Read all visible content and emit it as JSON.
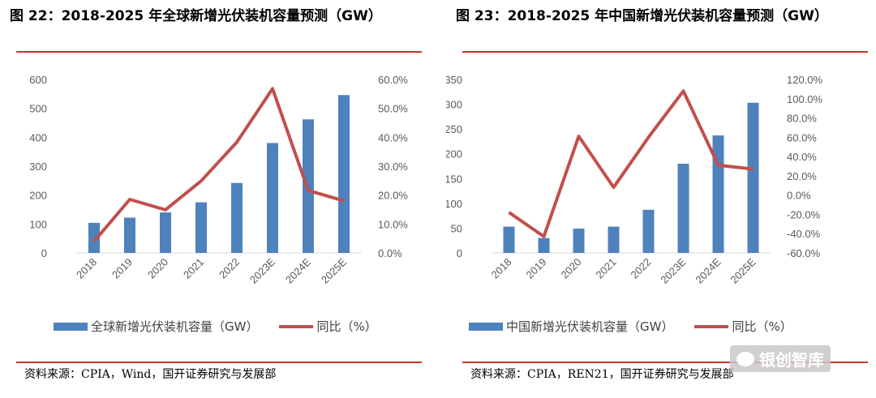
{
  "colors": {
    "bar": "#4f81bd",
    "line": "#c0504d",
    "rule": "#c0392b",
    "axis_text": "#595959"
  },
  "left": {
    "title": "图 22：2018-2025 年全球新增光伏装机容量预测（GW）",
    "legend_bar": "全球新增光伏装机容量（GW）",
    "legend_line": "同比（%）",
    "source": "资料来源：CPIA，Wind，国开证券研究与发展部"
  },
  "right": {
    "title": "图 23：2018-2025 年中国新增光伏装机容量预测（GW）",
    "legend_bar": "中国新增光伏装机容量（GW）",
    "legend_line": "同比（%）",
    "source": "资料来源：CPIA，REN21，国开证券研究与发展部"
  },
  "watermark": "银创智库",
  "chart_data": [
    {
      "type": "bar",
      "categories": [
        "2018",
        "2019",
        "2020",
        "2021",
        "2022",
        "2023E",
        "2024E",
        "2025E"
      ],
      "series": [
        {
          "name": "全球新增光伏装机容量（GW）",
          "type": "bar",
          "axis": "left",
          "values": [
            104,
            122,
            140,
            175,
            242,
            380,
            462,
            546
          ]
        },
        {
          "name": "同比（%）",
          "type": "line",
          "axis": "right",
          "values": [
            4.0,
            18.5,
            14.9,
            24.9,
            38.3,
            56.8,
            21.6,
            18.0
          ]
        }
      ],
      "ylim_left": [
        0,
        600
      ],
      "yticks_left": [
        "0",
        "100",
        "200",
        "300",
        "400",
        "500",
        "600"
      ],
      "ylim_right": [
        0,
        60
      ],
      "yticks_right": [
        "0.0%",
        "10.0%",
        "20.0%",
        "30.0%",
        "40.0%",
        "50.0%",
        "60.0%"
      ]
    },
    {
      "type": "bar",
      "categories": [
        "2018",
        "2019",
        "2020",
        "2021",
        "2022",
        "2023E",
        "2024E",
        "2025E"
      ],
      "series": [
        {
          "name": "中国新增光伏装机容量（GW）",
          "type": "bar",
          "axis": "left",
          "values": [
            53,
            30,
            49,
            53,
            87,
            180,
            237,
            303
          ]
        },
        {
          "name": "同比（%）",
          "type": "line",
          "axis": "right",
          "values": [
            -18,
            -43,
            61,
            8,
            60,
            108,
            31,
            27
          ]
        }
      ],
      "ylim_left": [
        0,
        350
      ],
      "yticks_left": [
        "0",
        "50",
        "100",
        "150",
        "200",
        "250",
        "300",
        "350"
      ],
      "ylim_right": [
        -60,
        120
      ],
      "yticks_right": [
        "-60.0%",
        "-40.0%",
        "-20.0%",
        "0.0%",
        "20.0%",
        "40.0%",
        "60.0%",
        "80.0%",
        "100.0%",
        "120.0%"
      ]
    }
  ]
}
